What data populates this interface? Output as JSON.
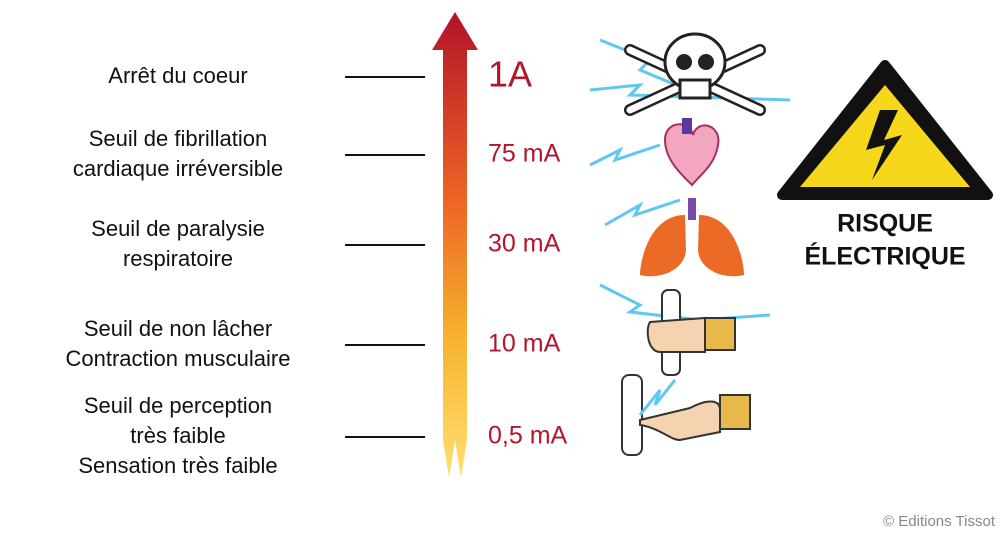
{
  "levels": [
    {
      "label": [
        "Arrêt du coeur"
      ],
      "current": "1A"
    },
    {
      "label": [
        "Seuil de fibrillation",
        "cardiaque irréversible"
      ],
      "current": "75 mA"
    },
    {
      "label": [
        "Seuil de paralysie",
        "respiratoire"
      ],
      "current": "30 mA"
    },
    {
      "label": [
        "Seuil de non lâcher",
        "Contraction musculaire"
      ],
      "current": "10 mA"
    },
    {
      "label": [
        "Seuil de perception",
        "très faible",
        "Sensation très faible"
      ],
      "current": "0,5 mA"
    }
  ],
  "warning": [
    "RISQUE",
    "ÉLECTRIQUE"
  ],
  "credit": "© Editions Tissot"
}
